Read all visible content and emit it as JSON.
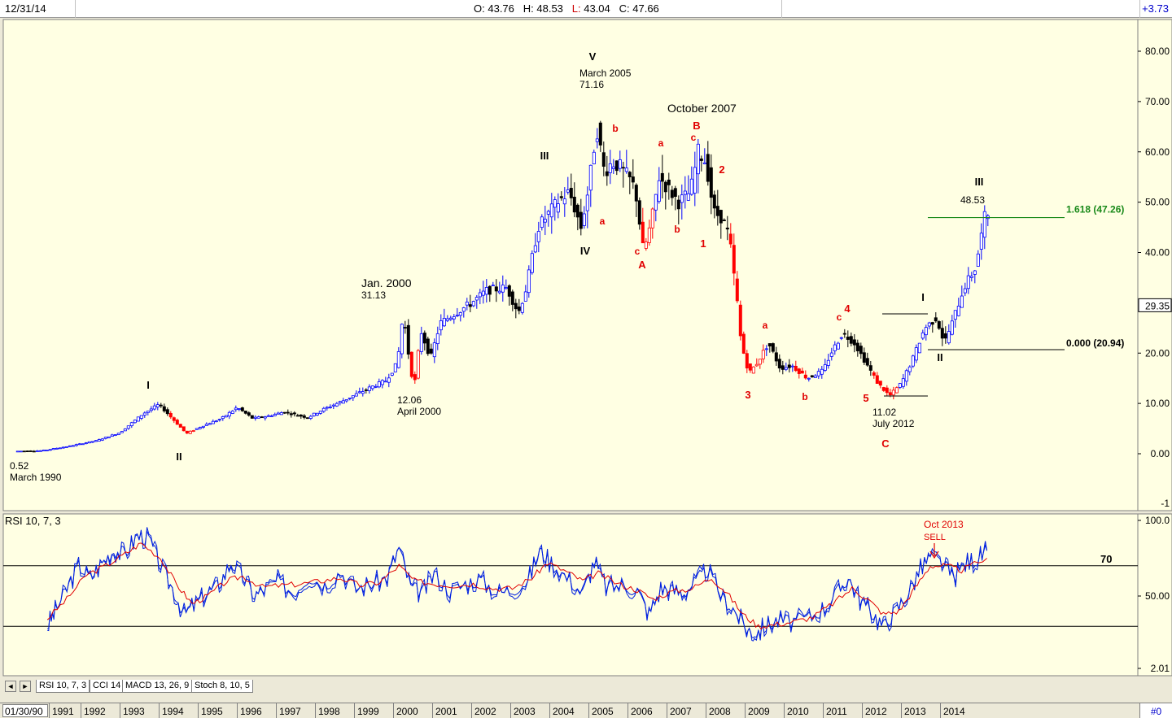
{
  "header": {
    "date": "12/31/14",
    "open_label": "O:",
    "open": "43.76",
    "high_label": "H:",
    "high": "48.53",
    "low_label": "L:",
    "low": "43.04",
    "close_label": "C:",
    "close": "47.66",
    "change": "+3.73"
  },
  "price_axis": {
    "ticks": [
      "80.00",
      "70.00",
      "60.00",
      "50.00",
      "40.00",
      "20.00",
      "10.00",
      "0.00"
    ],
    "current_marker": "29.35",
    "clipped_bottom": "-1"
  },
  "rsi_axis": {
    "ticks": [
      "100.0",
      "50.00",
      "2.01"
    ]
  },
  "colors": {
    "chart_bg": "#ffffe3",
    "up": "#0000ff",
    "down": "#000000",
    "bear_highlight": "#ff0000",
    "wave_red": "#e00000",
    "fib": "#1a8a1a",
    "rsi_line": "#0020e0",
    "rsi_signal": "#e00000"
  },
  "chart_data": [
    {
      "type": "candlestick",
      "title": "",
      "x_range": [
        "1990-01",
        "2015-01"
      ],
      "ylim": [
        -1,
        86
      ],
      "x_tick_labels": [
        "1991",
        "1992",
        "1993",
        "1994",
        "1995",
        "1996",
        "1997",
        "1998",
        "1999",
        "2000",
        "2001",
        "2002",
        "2003",
        "2004",
        "2005",
        "2006",
        "2007",
        "2008",
        "2009",
        "2010",
        "2011",
        "2012",
        "2013",
        "2014"
      ],
      "price_path": [
        [
          1990.2,
          0.5
        ],
        [
          1990.8,
          0.6
        ],
        [
          1991.5,
          1.5
        ],
        [
          1992.2,
          2.6
        ],
        [
          1992.8,
          4.2
        ],
        [
          1993.4,
          8.0
        ],
        [
          1993.8,
          9.8
        ],
        [
          1994.2,
          6.5
        ],
        [
          1994.5,
          4.0
        ],
        [
          1994.9,
          5.5
        ],
        [
          1995.4,
          7.0
        ],
        [
          1995.8,
          9.2
        ],
        [
          1996.2,
          7.0
        ],
        [
          1996.6,
          7.5
        ],
        [
          1997.0,
          8.3
        ],
        [
          1997.6,
          7.2
        ],
        [
          1998.0,
          8.8
        ],
        [
          1998.5,
          10.5
        ],
        [
          1998.9,
          12.0
        ],
        [
          1999.3,
          13.5
        ],
        [
          1999.6,
          14.5
        ],
        [
          1999.9,
          18.0
        ],
        [
          2000.05,
          28.0
        ],
        [
          2000.25,
          16.0
        ],
        [
          2000.35,
          14.5
        ],
        [
          2000.5,
          24.5
        ],
        [
          2000.75,
          19.0
        ],
        [
          2001.0,
          26.0
        ],
        [
          2001.4,
          28.0
        ],
        [
          2001.8,
          30.0
        ],
        [
          2002.2,
          32.5
        ],
        [
          2002.7,
          33.0
        ],
        [
          2003.0,
          28.0
        ],
        [
          2003.2,
          33.0
        ],
        [
          2003.5,
          45.0
        ],
        [
          2003.8,
          48.0
        ],
        [
          2004.0,
          50.0
        ],
        [
          2004.3,
          52.0
        ],
        [
          2004.6,
          45.0
        ],
        [
          2004.8,
          53.0
        ],
        [
          2005.0,
          65.0
        ],
        [
          2005.2,
          56.0
        ],
        [
          2005.4,
          58.0
        ],
        [
          2005.6,
          57.0
        ],
        [
          2005.9,
          54.0
        ],
        [
          2006.0,
          52.0
        ],
        [
          2006.2,
          40.0
        ],
        [
          2006.4,
          46.0
        ],
        [
          2006.6,
          55.0
        ],
        [
          2006.9,
          52.0
        ],
        [
          2007.1,
          50.0
        ],
        [
          2007.4,
          52.0
        ],
        [
          2007.6,
          60.0
        ],
        [
          2007.8,
          58.0
        ],
        [
          2008.0,
          48.0
        ],
        [
          2008.2,
          47.0
        ],
        [
          2008.4,
          43.0
        ],
        [
          2008.6,
          30.0
        ],
        [
          2008.7,
          22.0
        ],
        [
          2008.9,
          16.0
        ],
        [
          2009.1,
          18.0
        ],
        [
          2009.4,
          22.0
        ],
        [
          2009.7,
          17.0
        ],
        [
          2010.0,
          17.5
        ],
        [
          2010.4,
          15.0
        ],
        [
          2010.8,
          16.5
        ],
        [
          2011.0,
          20.0
        ],
        [
          2011.3,
          24.0
        ],
        [
          2011.6,
          22.0
        ],
        [
          2011.9,
          18.0
        ],
        [
          2012.2,
          14.0
        ],
        [
          2012.5,
          11.5
        ],
        [
          2012.8,
          14.0
        ],
        [
          2013.1,
          19.0
        ],
        [
          2013.4,
          25.0
        ],
        [
          2013.7,
          27.0
        ],
        [
          2013.9,
          22.0
        ],
        [
          2014.1,
          26.0
        ],
        [
          2014.4,
          33.0
        ],
        [
          2014.7,
          37.0
        ],
        [
          2014.95,
          47.66
        ]
      ],
      "annotations": [
        {
          "text": "0.52",
          "sub": "March 1990"
        },
        {
          "text": "Jan. 2000",
          "sub": "31.13"
        },
        {
          "text": "12.06",
          "sub": "April 2000"
        },
        {
          "text": "March 2005",
          "sub": "71.16"
        },
        {
          "text": "October 2007"
        },
        {
          "text": "11.02",
          "sub": "July 2012"
        },
        {
          "text": "48.53"
        }
      ],
      "wave_labels_black": [
        "I",
        "II",
        "III",
        "IV",
        "V",
        "I",
        "II",
        "III"
      ],
      "wave_labels_red": [
        "a",
        "b",
        "c",
        "A",
        "a",
        "b",
        "c",
        "B",
        "2",
        "1",
        "3",
        "a",
        "b",
        "c",
        "4",
        "5",
        "C"
      ],
      "fib_levels": [
        {
          "label": "1.618 (47.26)",
          "value": 47.26
        },
        {
          "label": "0.000 (20.94)",
          "value": 20.94
        }
      ]
    },
    {
      "type": "line",
      "title": "RSI 10, 7, 3",
      "ylim": [
        2.01,
        100
      ],
      "reference_lines": [
        70,
        30
      ],
      "reference_label": "70",
      "annotation": {
        "text": "Oct 2013",
        "sub": "SELL"
      },
      "series": [
        {
          "name": "",
          "points": [
            [
              1990.9,
              30
            ],
            [
              1991.1,
              40
            ],
            [
              1991.4,
              55
            ],
            [
              1991.7,
              70
            ],
            [
              1992.0,
              62
            ],
            [
              1992.3,
              72
            ],
            [
              1992.6,
              80
            ],
            [
              1992.9,
              78
            ],
            [
              1993.2,
              90
            ],
            [
              1993.5,
              88
            ],
            [
              1993.8,
              70
            ],
            [
              1994.1,
              55
            ],
            [
              1994.4,
              38
            ],
            [
              1994.7,
              45
            ],
            [
              1995.0,
              52
            ],
            [
              1995.3,
              58
            ],
            [
              1995.6,
              72
            ],
            [
              1995.9,
              63
            ],
            [
              1996.2,
              50
            ],
            [
              1996.5,
              55
            ],
            [
              1996.8,
              60
            ],
            [
              1997.2,
              52
            ],
            [
              1997.6,
              63
            ],
            [
              1998.0,
              57
            ],
            [
              1998.4,
              66
            ],
            [
              1998.8,
              55
            ],
            [
              1999.2,
              58
            ],
            [
              1999.6,
              62
            ],
            [
              1999.9,
              82
            ],
            [
              2000.2,
              56
            ],
            [
              2000.5,
              52
            ],
            [
              2000.8,
              65
            ],
            [
              2001.2,
              53
            ],
            [
              2001.6,
              58
            ],
            [
              2002.0,
              61
            ],
            [
              2002.4,
              52
            ],
            [
              2002.8,
              54
            ],
            [
              2003.2,
              60
            ],
            [
              2003.5,
              80
            ],
            [
              2003.8,
              72
            ],
            [
              2004.2,
              62
            ],
            [
              2004.6,
              52
            ],
            [
              2004.9,
              73
            ],
            [
              2005.2,
              56
            ],
            [
              2005.6,
              57
            ],
            [
              2006.0,
              54
            ],
            [
              2006.3,
              38
            ],
            [
              2006.6,
              55
            ],
            [
              2006.9,
              54
            ],
            [
              2007.2,
              52
            ],
            [
              2007.5,
              60
            ],
            [
              2007.8,
              67
            ],
            [
              2008.2,
              48
            ],
            [
              2008.5,
              40
            ],
            [
              2008.8,
              28
            ],
            [
              2009.0,
              25
            ],
            [
              2009.3,
              30
            ],
            [
              2009.6,
              34
            ],
            [
              2010.0,
              33
            ],
            [
              2010.4,
              36
            ],
            [
              2010.8,
              42
            ],
            [
              2011.1,
              52
            ],
            [
              2011.4,
              62
            ],
            [
              2011.7,
              48
            ],
            [
              2012.0,
              39
            ],
            [
              2012.3,
              30
            ],
            [
              2012.6,
              40
            ],
            [
              2012.9,
              50
            ],
            [
              2013.2,
              66
            ],
            [
              2013.5,
              76
            ],
            [
              2013.8,
              72
            ],
            [
              2014.1,
              62
            ],
            [
              2014.4,
              72
            ],
            [
              2014.7,
              74
            ],
            [
              2014.95,
              80
            ]
          ]
        },
        {
          "name": "",
          "points": [
            [
              1990.9,
              35
            ],
            [
              1991.4,
              48
            ],
            [
              1991.9,
              64
            ],
            [
              1992.4,
              70
            ],
            [
              1992.9,
              78
            ],
            [
              1993.3,
              85
            ],
            [
              1993.8,
              75
            ],
            [
              1994.2,
              58
            ],
            [
              1994.6,
              45
            ],
            [
              1995.0,
              50
            ],
            [
              1995.5,
              60
            ],
            [
              1995.9,
              63
            ],
            [
              1996.4,
              56
            ],
            [
              1996.9,
              57
            ],
            [
              1997.4,
              58
            ],
            [
              1997.9,
              60
            ],
            [
              1998.4,
              62
            ],
            [
              1998.9,
              57
            ],
            [
              1999.4,
              59
            ],
            [
              1999.9,
              70
            ],
            [
              2000.3,
              60
            ],
            [
              2000.8,
              58
            ],
            [
              2001.3,
              57
            ],
            [
              2001.8,
              58
            ],
            [
              2002.3,
              55
            ],
            [
              2002.8,
              55
            ],
            [
              2003.3,
              62
            ],
            [
              2003.7,
              72
            ],
            [
              2004.2,
              66
            ],
            [
              2004.6,
              60
            ],
            [
              2005.0,
              65
            ],
            [
              2005.5,
              58
            ],
            [
              2006.0,
              54
            ],
            [
              2006.4,
              48
            ],
            [
              2006.9,
              53
            ],
            [
              2007.4,
              55
            ],
            [
              2007.9,
              62
            ],
            [
              2008.3,
              52
            ],
            [
              2008.7,
              38
            ],
            [
              2009.1,
              30
            ],
            [
              2009.5,
              31
            ],
            [
              2010.0,
              33
            ],
            [
              2010.5,
              36
            ],
            [
              2011.0,
              45
            ],
            [
              2011.5,
              55
            ],
            [
              2011.9,
              48
            ],
            [
              2012.3,
              38
            ],
            [
              2012.7,
              40
            ],
            [
              2013.1,
              55
            ],
            [
              2013.5,
              70
            ],
            [
              2013.9,
              70
            ],
            [
              2014.3,
              67
            ],
            [
              2014.95,
              75
            ]
          ]
        }
      ]
    }
  ],
  "tabs": [
    {
      "label": "RSI 10, 7, 3"
    },
    {
      "label": "CCI 14"
    },
    {
      "label": "MACD 13, 26, 9"
    },
    {
      "label": "Stoch 8, 10, 5"
    }
  ],
  "datebar": {
    "start": "01/30/90",
    "years": [
      "1991",
      "1992",
      "1993",
      "1994",
      "1995",
      "1996",
      "1997",
      "1998",
      "1999",
      "2000",
      "2001",
      "2002",
      "2003",
      "2004",
      "2005",
      "2006",
      "2007",
      "2008",
      "2009",
      "2010",
      "2011",
      "2012",
      "2013",
      "2014"
    ],
    "end_label": "#0"
  }
}
